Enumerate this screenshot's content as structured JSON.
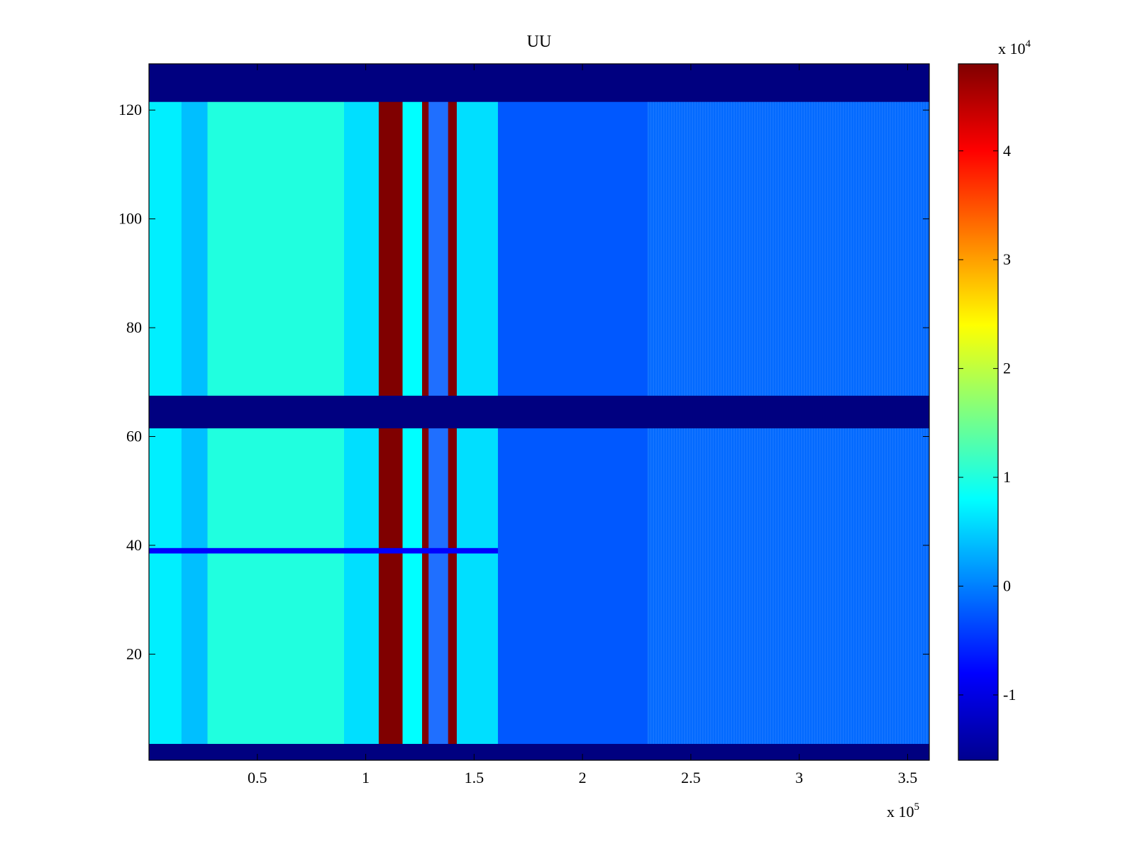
{
  "chart_data": {
    "type": "heatmap",
    "title": "UU",
    "x_axis": {
      "multiplier_base": "x 10",
      "multiplier_exp": "5",
      "range": [
        0.0,
        3.6
      ],
      "ticks": [
        0.5,
        1,
        1.5,
        2,
        2.5,
        3,
        3.5
      ],
      "tick_labels": [
        "0.5",
        "1",
        "1.5",
        "2",
        "2.5",
        "3",
        "3.5"
      ]
    },
    "y_axis": {
      "range": [
        0.5,
        128.5
      ],
      "ticks": [
        20,
        40,
        60,
        80,
        100,
        120
      ],
      "tick_labels": [
        "20",
        "40",
        "60",
        "80",
        "100",
        "120"
      ]
    },
    "colorbar": {
      "colormap": "jet",
      "multiplier_base": "x 10",
      "multiplier_exp": "4",
      "range": [
        -1.6,
        4.8
      ],
      "ticks": [
        -1,
        0,
        1,
        2,
        3,
        4
      ],
      "tick_labels": [
        "-1",
        "0",
        "1",
        "2",
        "3",
        "4"
      ]
    },
    "grid": false,
    "features": {
      "rows_at_minimum": [
        [
          0.5,
          3.5
        ],
        [
          61.5,
          67.5
        ],
        [
          121.5,
          128.5
        ]
      ],
      "saturated_columns": [
        [
          1.06,
          1.17
        ],
        [
          1.26,
          1.29
        ],
        [
          1.38,
          1.42
        ]
      ],
      "column_levels": [
        {
          "x": [
            0.0,
            0.15
          ],
          "value": 0.7
        },
        {
          "x": [
            0.15,
            0.27
          ],
          "value": 0.4
        },
        {
          "x": [
            0.27,
            0.9
          ],
          "value": 1.0
        },
        {
          "x": [
            0.9,
            1.06
          ],
          "value": 0.6
        },
        {
          "x": [
            1.17,
            1.26
          ],
          "value": 0.8
        },
        {
          "x": [
            1.42,
            1.61
          ],
          "value": 0.6
        },
        {
          "x": [
            1.61,
            2.3
          ],
          "value": -0.25
        },
        {
          "x": [
            2.3,
            3.6
          ],
          "value": -0.15
        }
      ],
      "low_row_y": 39
    }
  }
}
